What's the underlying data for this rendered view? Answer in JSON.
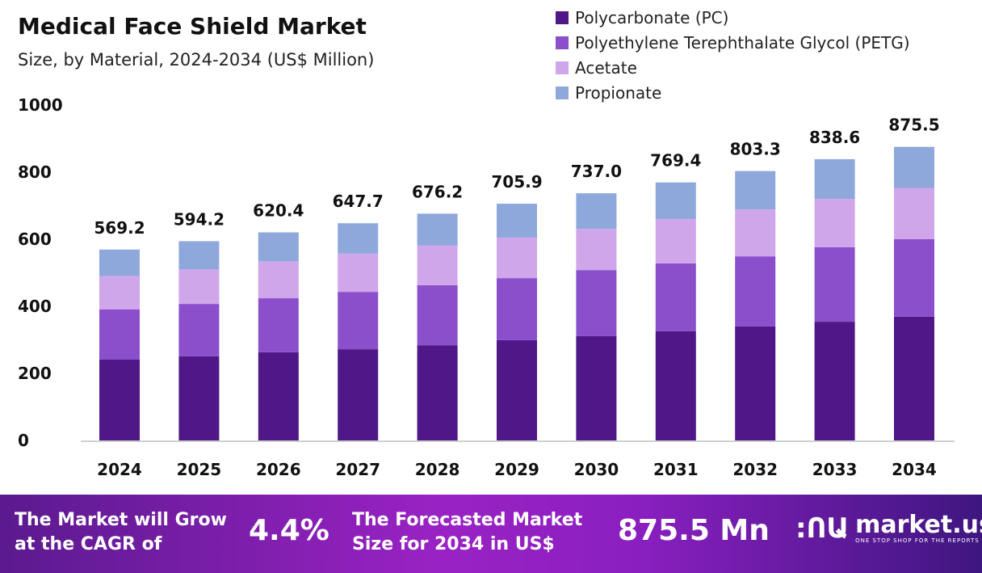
{
  "header": {
    "title": "Medical Face Shield Market",
    "subtitle": "Size, by Material, 2024-2034 (US$ Million)"
  },
  "chart_data": {
    "type": "bar",
    "stacked": true,
    "title": "Medical Face Shield Market",
    "subtitle": "Size, by Material, 2024-2034 (US$ Million)",
    "xlabel": "",
    "ylabel": "",
    "ylim": [
      0,
      1000
    ],
    "yticks": [
      0,
      200,
      400,
      600,
      800,
      1000
    ],
    "grid": false,
    "legend_position": "top-right",
    "categories": [
      "2024",
      "2025",
      "2026",
      "2027",
      "2028",
      "2029",
      "2030",
      "2031",
      "2032",
      "2033",
      "2034"
    ],
    "series": [
      {
        "name": "Polycarbonate (PC)",
        "color": "#4f1787",
        "values": [
          241,
          251,
          263,
          272,
          284,
          299,
          311,
          326,
          340,
          354,
          369
        ]
      },
      {
        "name": "Polyethylene Terephthalate Glycol (PETG)",
        "color": "#8b4fcb",
        "values": [
          150,
          156,
          161,
          171,
          179,
          185,
          197,
          202,
          209,
          222,
          231
        ]
      },
      {
        "name": "Acetate",
        "color": "#d0a6ea",
        "values": [
          99,
          103,
          110,
          114,
          118,
          121,
          123,
          132,
          140,
          144,
          153
        ]
      },
      {
        "name": "Propionate",
        "color": "#8fa8dc",
        "values": [
          79.2,
          84.2,
          86.4,
          90.7,
          95.2,
          100.9,
          106.0,
          109.4,
          114.3,
          118.6,
          122.5
        ]
      }
    ],
    "totals": [
      "569.2",
      "594.2",
      "620.4",
      "647.7",
      "676.2",
      "705.9",
      "737.0",
      "769.4",
      "803.3",
      "838.6",
      "875.5"
    ]
  },
  "banner": {
    "cagr_text_1": "The Market will Grow",
    "cagr_text_2": "at the CAGR of",
    "cagr_value": "4.4%",
    "forecast_text_1": "The Forecasted Market",
    "forecast_text_2": "Size for 2034 in US$",
    "forecast_value": "875.5 Mn",
    "logo_name": "market.us",
    "logo_tagline": "ONE STOP SHOP FOR THE REPORTS"
  }
}
